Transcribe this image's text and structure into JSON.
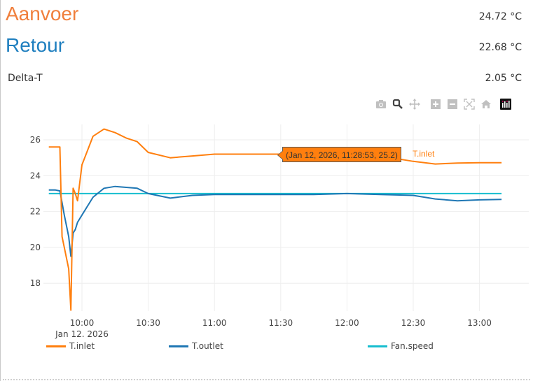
{
  "header": {
    "aanvoer": {
      "label": "Aanvoer",
      "value": "24.72 °C",
      "color": "#f07f3c"
    },
    "retour": {
      "label": "Retour",
      "value": "22.68 °C",
      "color": "#1f7fbf"
    },
    "delta": {
      "label": "Delta-T",
      "value": "2.05 °C"
    }
  },
  "modebar": {
    "icons": [
      "camera-icon",
      "zoom-icon",
      "pan-icon",
      "zoom-in-icon",
      "zoom-out-icon",
      "autoscale-icon",
      "reset-axes-icon",
      "plotly-logo-icon"
    ]
  },
  "tooltip": {
    "text": "(Jan 12, 2026, 11:28:53, 25.2)",
    "series": "T.inlet"
  },
  "chart_data": {
    "type": "line",
    "title": "",
    "xlabel": "",
    "ylabel": "",
    "x_ticks": [
      "10:00",
      "10:30",
      "11:00",
      "11:30",
      "12:00",
      "12:30",
      "13:00"
    ],
    "x_date_label": "Jan 12, 2026",
    "y_ticks": [
      18,
      20,
      22,
      24,
      26
    ],
    "ylim": [
      16.2,
      27.0
    ],
    "grid": true,
    "legend_position": "bottom",
    "x": [
      "09:45",
      "09:48",
      "09:50",
      "09:51",
      "09:52",
      "09:54",
      "09:55",
      "09:56",
      "09:57",
      "09:58",
      "10:00",
      "10:05",
      "10:10",
      "10:15",
      "10:20",
      "10:25",
      "10:30",
      "10:40",
      "10:50",
      "11:00",
      "11:30",
      "11:45",
      "12:00",
      "12:15",
      "12:30",
      "12:40",
      "12:50",
      "13:00",
      "13:10"
    ],
    "series": [
      {
        "name": "T.inlet",
        "color": "#ff7f0e",
        "values": [
          25.6,
          25.6,
          25.6,
          20.6,
          20.0,
          18.8,
          16.5,
          23.3,
          23.0,
          22.6,
          24.6,
          26.2,
          26.6,
          26.4,
          26.1,
          25.9,
          25.3,
          25.0,
          25.1,
          25.2,
          25.2,
          25.2,
          25.2,
          25.1,
          24.8,
          24.65,
          24.7,
          24.72,
          24.72
        ]
      },
      {
        "name": "T.outlet",
        "color": "#1f77b4",
        "values": [
          23.2,
          23.2,
          23.15,
          22.5,
          21.8,
          20.6,
          19.5,
          20.8,
          21.0,
          21.4,
          21.8,
          22.8,
          23.3,
          23.4,
          23.35,
          23.3,
          23.0,
          22.75,
          22.9,
          22.95,
          22.95,
          22.95,
          23.0,
          22.95,
          22.9,
          22.7,
          22.6,
          22.65,
          22.68
        ]
      },
      {
        "name": "Fan.speed",
        "color": "#17becf",
        "values": [
          23.0,
          23.0,
          23.0,
          23.0,
          23.0,
          23.0,
          23.0,
          23.0,
          23.0,
          23.0,
          23.0,
          23.0,
          23.0,
          23.0,
          23.0,
          23.0,
          23.0,
          23.0,
          23.0,
          23.0,
          23.0,
          23.0,
          23.0,
          23.0,
          23.0,
          23.0,
          23.0,
          23.0,
          23.0
        ]
      }
    ]
  },
  "legend": [
    {
      "label": "T.inlet",
      "color": "#ff7f0e"
    },
    {
      "label": "T.outlet",
      "color": "#1f77b4"
    },
    {
      "label": "Fan.speed",
      "color": "#17becf"
    }
  ]
}
